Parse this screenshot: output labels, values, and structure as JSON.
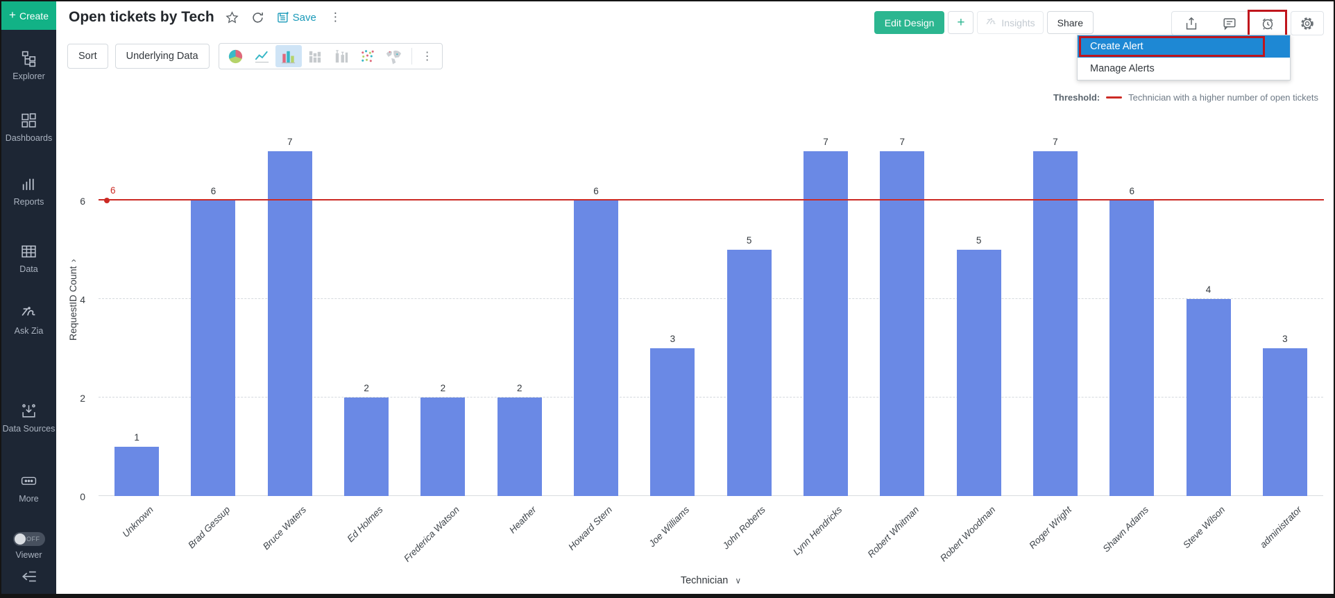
{
  "sidebar": {
    "create_label": "Create",
    "items": [
      {
        "label": "Explorer",
        "icon": "explorer-icon"
      },
      {
        "label": "Dashboards",
        "icon": "dashboards-icon"
      },
      {
        "label": "Reports",
        "icon": "reports-icon"
      },
      {
        "label": "Data",
        "icon": "data-table-icon"
      },
      {
        "label": "Ask Zia",
        "icon": "zia-icon"
      },
      {
        "label": "Data Sources",
        "icon": "data-sources-icon"
      },
      {
        "label": "More",
        "icon": "more-icon"
      },
      {
        "label": "Viewer",
        "icon": "viewer-toggle",
        "toggle": "OFF"
      }
    ]
  },
  "header": {
    "title": "Open tickets by Tech",
    "save_label": "Save",
    "edit_design_label": "Edit Design",
    "insights_label": "Insights",
    "share_label": "Share"
  },
  "toolbar": {
    "sort_label": "Sort",
    "underlying_data_label": "Underlying Data",
    "chart_types": [
      {
        "icon": "pie-chart-icon",
        "selected": false
      },
      {
        "icon": "line-chart-icon",
        "selected": false
      },
      {
        "icon": "bar-chart-icon",
        "selected": true
      },
      {
        "icon": "stacked-bar-chart-icon",
        "selected": false
      },
      {
        "icon": "bar-whisker-chart-icon",
        "selected": false
      },
      {
        "icon": "scatter-chart-icon",
        "selected": false
      },
      {
        "icon": "map-chart-icon",
        "selected": false
      }
    ]
  },
  "alert_menu": {
    "items": [
      {
        "label": "Create Alert",
        "selected": true,
        "annotated": true
      },
      {
        "label": "Manage Alerts",
        "selected": false,
        "annotated": false
      }
    ]
  },
  "chart_data": {
    "type": "bar",
    "title": "Open tickets by Tech",
    "categories": [
      "Unknown",
      "Brad Gessup",
      "Bruce Waters",
      "Ed Holmes",
      "Frederica Watson",
      "Heather",
      "Howard Stern",
      "Joe Williams",
      "John Roberts",
      "Lynn Hendricks",
      "Robert Whitman",
      "Robert Woodman",
      "Roger Wright",
      "Shawn Adams",
      "Steve Wilson",
      "administrator"
    ],
    "values": [
      1,
      6,
      7,
      2,
      2,
      2,
      6,
      3,
      5,
      7,
      7,
      5,
      7,
      6,
      4,
      3
    ],
    "series_name": "RequestID Count",
    "xlabel": "Technician",
    "ylabel": "RequestID Count",
    "yticks": [
      0,
      2,
      4,
      6
    ],
    "ylim": [
      0,
      7.2
    ],
    "grid": "horizontal-dashed",
    "value_labels": true,
    "bar_color": "#6a89e5",
    "threshold": {
      "value": 6,
      "label": "6",
      "color": "#cc2a24",
      "legend_label": "Threshold:",
      "legend_text": "Technician with a higher number of open tickets"
    }
  },
  "colors": {
    "brand_create_green": "#12b286",
    "edit_design_green": "#2cb690",
    "bar_blue": "#6a89e5",
    "threshold_red": "#cc2a24",
    "menu_selected_blue": "#1e88d4",
    "annotation_red": "#c0151c",
    "sidebar_bg": "#1d2634"
  }
}
